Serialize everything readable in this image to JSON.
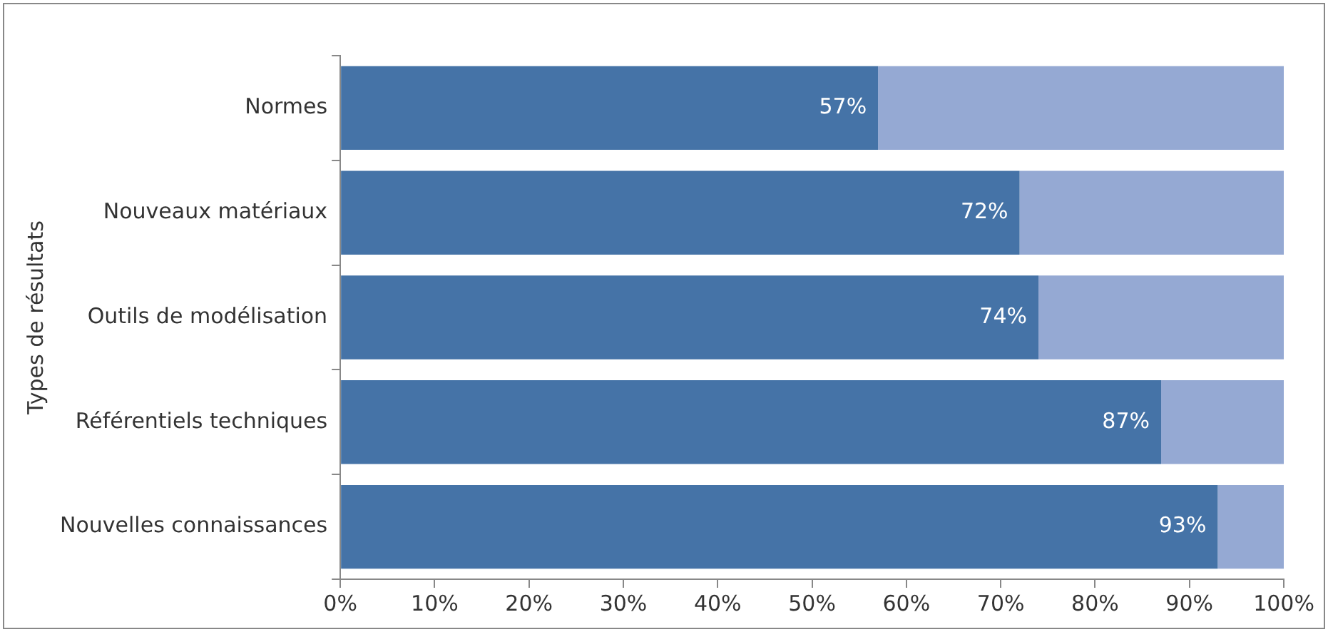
{
  "chart_data": {
    "type": "bar",
    "orientation": "horizontal",
    "stacked": true,
    "ylabel": "Types de résultats",
    "categories": [
      "Normes",
      "Nouveaux matériaux",
      "Outils de modélisation",
      "Référentiels techniques",
      "Nouvelles connaissances"
    ],
    "series": [
      {
        "color": "#4573a7",
        "values": [
          57,
          72,
          74,
          87,
          93
        ],
        "value_labels": [
          "57%",
          "72%",
          "74%",
          "87%",
          "93%"
        ]
      },
      {
        "color": "#95a9d3",
        "values": [
          43,
          28,
          26,
          13,
          7
        ]
      }
    ],
    "xlim": [
      0,
      100
    ],
    "xticks": [
      {
        "value": 0,
        "label": "0%"
      },
      {
        "value": 10,
        "label": "10%"
      },
      {
        "value": 20,
        "label": "20%"
      },
      {
        "value": 30,
        "label": "30%"
      },
      {
        "value": 40,
        "label": "40%"
      },
      {
        "value": 50,
        "label": "50%"
      },
      {
        "value": 60,
        "label": "60%"
      },
      {
        "value": 70,
        "label": "70%"
      },
      {
        "value": 80,
        "label": "80%"
      },
      {
        "value": 90,
        "label": "90%"
      },
      {
        "value": 100,
        "label": "100%"
      }
    ],
    "grid": false,
    "legend": false
  }
}
